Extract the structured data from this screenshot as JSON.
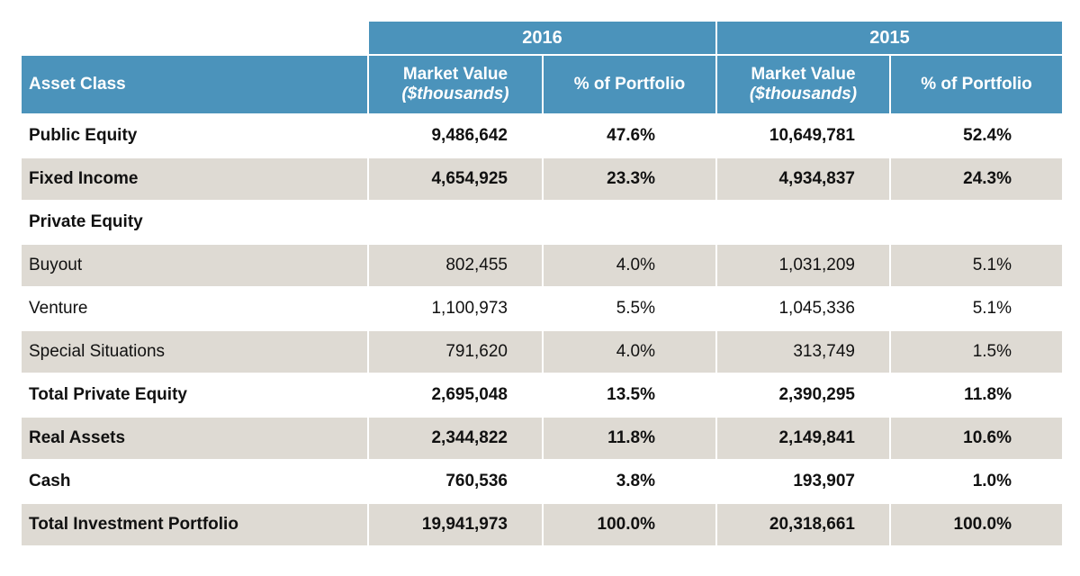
{
  "header": {
    "years": [
      "2016",
      "2015"
    ],
    "columns": [
      {
        "line1": "Asset Class"
      },
      {
        "line1": "Market Value",
        "line2": "($thousands)"
      },
      {
        "line1": "% of Portfolio"
      },
      {
        "line1": "Market Value",
        "line2": "($thousands)"
      },
      {
        "line1": "% of Portfolio"
      }
    ]
  },
  "table": {
    "rows": [
      [
        "Public Equity",
        "9,486,642",
        "47.6%",
        "10,649,781",
        "52.4%"
      ],
      [
        "Fixed Income",
        "4,654,925",
        "23.3%",
        "4,934,837",
        "24.3%"
      ],
      [
        "Private Equity"
      ],
      [
        "Buyout",
        "802,455",
        "4.0%",
        "1,031,209",
        "5.1%"
      ],
      [
        "Venture",
        "1,100,973",
        "5.5%",
        "1,045,336",
        "5.1%"
      ],
      [
        "Special Situations",
        "791,620",
        "4.0%",
        "313,749",
        "1.5%"
      ],
      [
        "Total Private Equity",
        "2,695,048",
        "13.5%",
        "2,390,295",
        "11.8%"
      ],
      [
        "Real Assets",
        "2,344,822",
        "11.8%",
        "2,149,841",
        "10.6%"
      ],
      [
        "Cash",
        "760,536",
        "3.8%",
        "193,907",
        "1.0%"
      ],
      [
        "Total Investment Portfolio",
        "19,941,973",
        "100.0%",
        "20,318,661",
        "100.0%"
      ]
    ]
  }
}
